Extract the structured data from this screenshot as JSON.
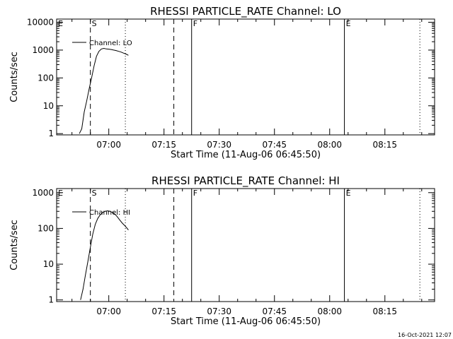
{
  "chart_data": [
    {
      "type": "line",
      "title": "RHESSI PARTICLE_RATE Channel: LO",
      "xlabel": "Start Time (11-Aug-06 06:45:50)",
      "ylabel": "Counts/sec",
      "y_scale": "log",
      "ylim": [
        0.9,
        13000
      ],
      "xlim": [
        "06:45:50",
        "08:28:30"
      ],
      "x_ticks": [
        "07:00",
        "07:15",
        "07:30",
        "07:45",
        "08:00",
        "08:15"
      ],
      "y_ticks": [
        "1",
        "10",
        "100",
        "1000",
        "10000"
      ],
      "legend": {
        "placement": "top-left",
        "entries": [
          "Channel: LO"
        ]
      },
      "markers": [
        {
          "label": "E",
          "time": "06:45:50",
          "style": "dotted"
        },
        {
          "label": "S",
          "time": "06:55:00",
          "style": "dashed"
        },
        {
          "label": "",
          "time": "07:04:30",
          "style": "dotted"
        },
        {
          "label": "",
          "time": "07:17:40",
          "style": "dashed"
        },
        {
          "label": "F",
          "time": "07:22:30",
          "style": "solid"
        },
        {
          "label": "E",
          "time": "08:04:00",
          "style": "solid"
        },
        {
          "label": "",
          "time": "08:24:30",
          "style": "dotted"
        }
      ],
      "series": [
        {
          "x": [
            "06:52:00",
            "06:52:40",
            "06:53:20",
            "06:54:00",
            "06:54:40",
            "06:55:20",
            "06:56:00",
            "06:56:40",
            "06:57:20",
            "06:58:00",
            "06:58:40",
            "06:59:20",
            "07:00:00",
            "07:00:40",
            "07:01:20",
            "07:02:00",
            "07:02:40",
            "07:03:20",
            "07:04:00",
            "07:04:40",
            "07:05:20"
          ],
          "y": [
            1,
            1.5,
            6,
            15,
            40,
            100,
            270,
            600,
            900,
            1100,
            1150,
            1100,
            1080,
            1050,
            1000,
            960,
            900,
            850,
            780,
            720,
            650
          ]
        }
      ]
    },
    {
      "type": "line",
      "title": "RHESSI PARTICLE_RATE Channel: HI",
      "xlabel": "Start Time (11-Aug-06 06:45:50)",
      "ylabel": "Counts/sec",
      "y_scale": "log",
      "ylim": [
        0.9,
        1300
      ],
      "xlim": [
        "06:45:50",
        "08:28:30"
      ],
      "x_ticks": [
        "07:00",
        "07:15",
        "07:30",
        "07:45",
        "08:00",
        "08:15"
      ],
      "y_ticks": [
        "1",
        "10",
        "100",
        "1000"
      ],
      "legend": {
        "placement": "top-left",
        "entries": [
          "Channel: HI"
        ]
      },
      "markers": [
        {
          "label": "E",
          "time": "06:45:50",
          "style": "dotted"
        },
        {
          "label": "S",
          "time": "06:55:00",
          "style": "dashed"
        },
        {
          "label": "",
          "time": "07:04:30",
          "style": "dotted"
        },
        {
          "label": "",
          "time": "07:17:40",
          "style": "dashed"
        },
        {
          "label": "F",
          "time": "07:22:30",
          "style": "solid"
        },
        {
          "label": "E",
          "time": "08:04:00",
          "style": "solid"
        },
        {
          "label": "",
          "time": "08:24:30",
          "style": "dotted"
        }
      ],
      "series": [
        {
          "x": [
            "06:52:20",
            "06:53:00",
            "06:53:40",
            "06:54:20",
            "06:55:00",
            "06:55:40",
            "06:56:20",
            "06:57:00",
            "06:57:40",
            "06:58:20",
            "06:59:00",
            "06:59:40",
            "07:00:20",
            "07:01:00",
            "07:01:40",
            "07:02:20",
            "07:03:00",
            "07:03:40",
            "07:04:20",
            "07:05:00",
            "07:05:20"
          ],
          "y": [
            1,
            2,
            5,
            12,
            30,
            70,
            130,
            190,
            240,
            280,
            300,
            310,
            300,
            280,
            250,
            210,
            170,
            140,
            120,
            100,
            90
          ]
        }
      ]
    }
  ],
  "footer": {
    "timestamp": "16-Oct-2021 12:07"
  }
}
